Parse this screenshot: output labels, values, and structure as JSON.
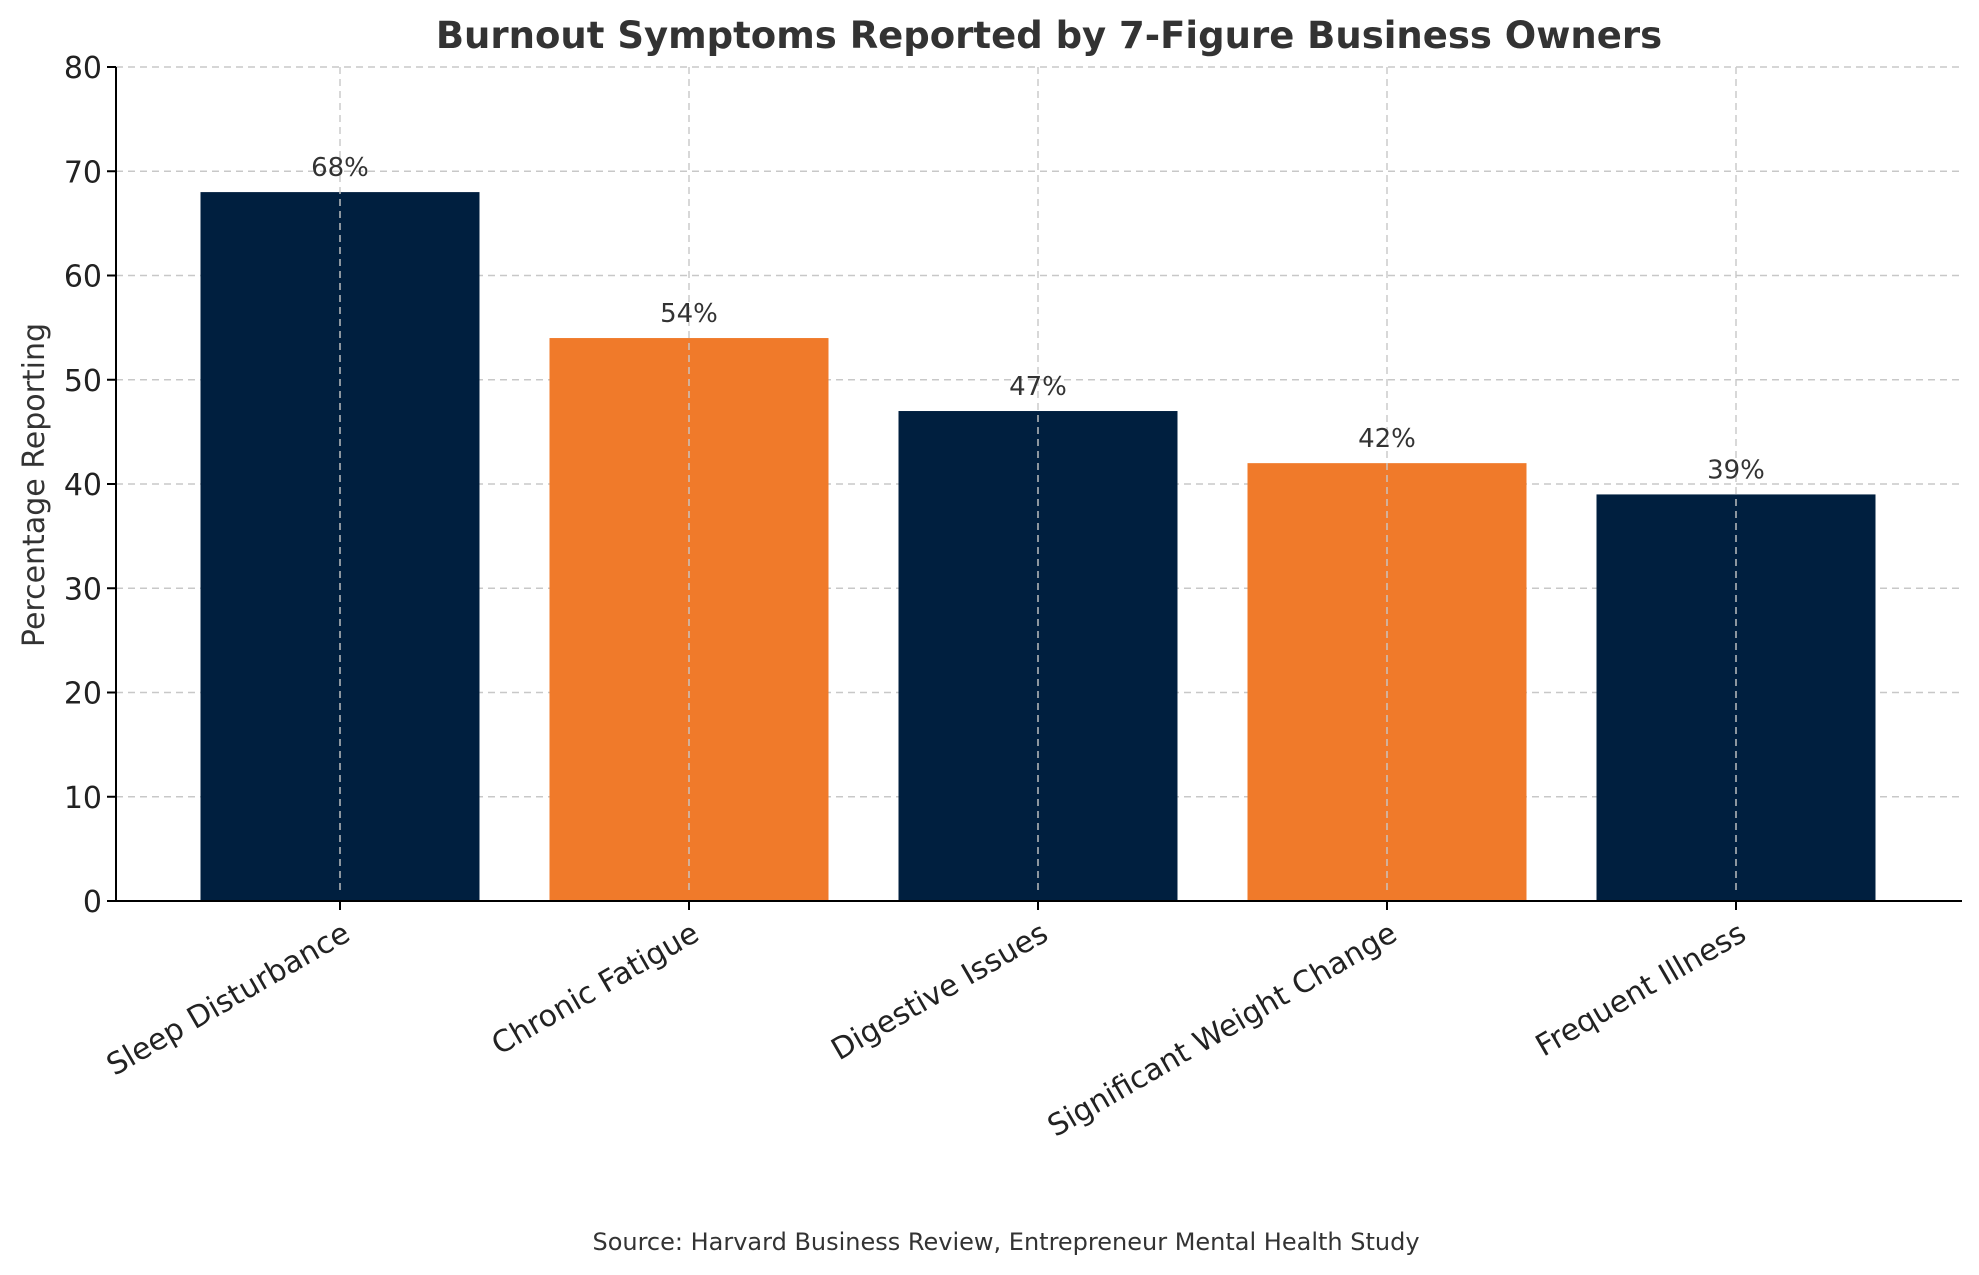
{
  "chart_data": {
    "type": "bar",
    "title": "Burnout Symptoms Reported by 7-Figure Business Owners",
    "xlabel": "",
    "ylabel": "Percentage Reporting",
    "categories": [
      "Sleep Disturbance",
      "Chronic Fatigue",
      "Digestive Issues",
      "Significant Weight Change",
      "Frequent Illness"
    ],
    "values": [
      68,
      54,
      47,
      42,
      39
    ],
    "value_labels": [
      "68%",
      "54%",
      "47%",
      "42%",
      "39%"
    ],
    "ylim": [
      0,
      80
    ],
    "yticks": [
      0,
      10,
      20,
      30,
      40,
      50,
      60,
      70,
      80
    ],
    "grid": true,
    "bar_colors": [
      "#001f3f",
      "#f07a2a",
      "#001f3f",
      "#f07a2a",
      "#001f3f"
    ],
    "source": "Source: Harvard Business Review, Entrepreneur Mental Health Study"
  }
}
